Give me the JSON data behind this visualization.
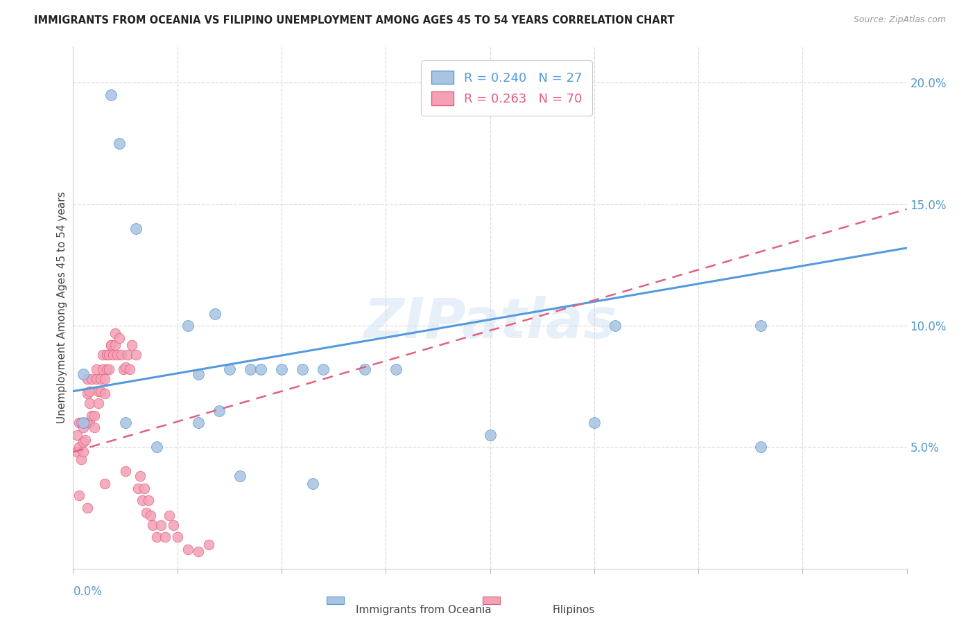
{
  "title": "IMMIGRANTS FROM OCEANIA VS FILIPINO UNEMPLOYMENT AMONG AGES 45 TO 54 YEARS CORRELATION CHART",
  "source": "Source: ZipAtlas.com",
  "ylabel": "Unemployment Among Ages 45 to 54 years",
  "right_yticks": [
    "5.0%",
    "10.0%",
    "15.0%",
    "20.0%"
  ],
  "right_ytick_vals": [
    0.05,
    0.1,
    0.15,
    0.2
  ],
  "legend_blue_r": "R = 0.240",
  "legend_blue_n": "N = 27",
  "legend_pink_r": "R = 0.263",
  "legend_pink_n": "N = 70",
  "series1_color": "#aac4e0",
  "series2_color": "#f4a0b5",
  "line1_color": "#5599dd",
  "line2_color": "#e06080",
  "watermark": "ZIPatlas",
  "blue_line_x": [
    0.0,
    0.4
  ],
  "blue_line_y": [
    0.073,
    0.132
  ],
  "pink_line_x": [
    0.0,
    0.4
  ],
  "pink_line_y": [
    0.048,
    0.148
  ],
  "blue_points_x": [
    0.018,
    0.022,
    0.03,
    0.005,
    0.055,
    0.06,
    0.068,
    0.075,
    0.085,
    0.09,
    0.1,
    0.11,
    0.12,
    0.14,
    0.155,
    0.2,
    0.25,
    0.26,
    0.33,
    0.04,
    0.06,
    0.07,
    0.08,
    0.115,
    0.025,
    0.33,
    0.005
  ],
  "blue_points_y": [
    0.195,
    0.175,
    0.14,
    0.06,
    0.1,
    0.06,
    0.105,
    0.082,
    0.082,
    0.082,
    0.082,
    0.082,
    0.082,
    0.082,
    0.082,
    0.055,
    0.06,
    0.1,
    0.05,
    0.05,
    0.08,
    0.065,
    0.038,
    0.035,
    0.06,
    0.1,
    0.08
  ],
  "pink_points_x": [
    0.002,
    0.002,
    0.003,
    0.003,
    0.004,
    0.004,
    0.005,
    0.005,
    0.005,
    0.006,
    0.006,
    0.007,
    0.007,
    0.007,
    0.008,
    0.008,
    0.008,
    0.009,
    0.009,
    0.01,
    0.01,
    0.011,
    0.011,
    0.012,
    0.012,
    0.013,
    0.013,
    0.014,
    0.014,
    0.015,
    0.015,
    0.016,
    0.016,
    0.017,
    0.017,
    0.018,
    0.018,
    0.019,
    0.02,
    0.02,
    0.021,
    0.022,
    0.023,
    0.024,
    0.025,
    0.026,
    0.027,
    0.028,
    0.03,
    0.031,
    0.032,
    0.033,
    0.034,
    0.035,
    0.036,
    0.037,
    0.038,
    0.04,
    0.042,
    0.044,
    0.046,
    0.048,
    0.05,
    0.055,
    0.06,
    0.065,
    0.003,
    0.007,
    0.015,
    0.025
  ],
  "pink_points_y": [
    0.055,
    0.048,
    0.05,
    0.06,
    0.045,
    0.06,
    0.058,
    0.052,
    0.048,
    0.06,
    0.053,
    0.06,
    0.072,
    0.078,
    0.06,
    0.068,
    0.073,
    0.078,
    0.063,
    0.063,
    0.058,
    0.078,
    0.082,
    0.068,
    0.073,
    0.078,
    0.073,
    0.082,
    0.088,
    0.072,
    0.078,
    0.082,
    0.088,
    0.082,
    0.088,
    0.092,
    0.092,
    0.088,
    0.097,
    0.092,
    0.088,
    0.095,
    0.088,
    0.082,
    0.083,
    0.088,
    0.082,
    0.092,
    0.088,
    0.033,
    0.038,
    0.028,
    0.033,
    0.023,
    0.028,
    0.022,
    0.018,
    0.013,
    0.018,
    0.013,
    0.022,
    0.018,
    0.013,
    0.008,
    0.007,
    0.01,
    0.03,
    0.025,
    0.035,
    0.04
  ],
  "xlim": [
    0.0,
    0.4
  ],
  "ylim": [
    0.0,
    0.215
  ],
  "xticks": [
    0.0,
    0.05,
    0.1,
    0.15,
    0.2,
    0.25,
    0.3,
    0.35,
    0.4
  ],
  "yticks": [
    0.05,
    0.1,
    0.15,
    0.2
  ]
}
